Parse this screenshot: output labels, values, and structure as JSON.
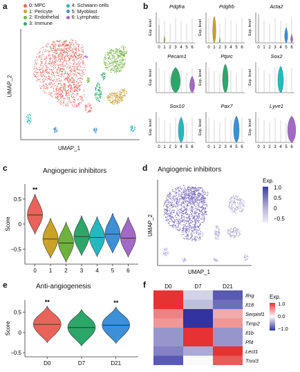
{
  "panels": {
    "a": "a",
    "b": "b",
    "c": "c",
    "d": "d",
    "e": "e",
    "f": "f"
  },
  "umap_a": {
    "legend": [
      {
        "label": "0: MPC",
        "color": "#e8645a"
      },
      {
        "label": "1: Pericyte",
        "color": "#c9a227"
      },
      {
        "label": "2: Endothelial",
        "color": "#6fb23e"
      },
      {
        "label": "3: Immune",
        "color": "#2da66a"
      },
      {
        "label": "4: Schwann cells",
        "color": "#26b8c0"
      },
      {
        "label": "5: Myoblast",
        "color": "#3d8fd6"
      },
      {
        "label": "6: Lymphatic",
        "color": "#a26ac6"
      }
    ],
    "xlabel": "UMAP_1",
    "ylabel": "UMAP_2"
  },
  "violin_b": {
    "ylabel": "Exp. level",
    "cluster_labels": [
      "0",
      "1",
      "2",
      "3",
      "4",
      "5",
      "6"
    ],
    "genes": [
      "Pdgfra",
      "Pdgfrb",
      "Acta2",
      "Pecam1",
      "Ptprc",
      "Sox2",
      "Sox10",
      "Pax7",
      "Lyve1"
    ]
  },
  "chart_data": [
    {
      "type": "violin",
      "title": "Angiogenic inhibitors",
      "xlabel": "",
      "ylabel": "Score",
      "categories": [
        "0",
        "1",
        "2",
        "3",
        "4",
        "5",
        "6"
      ],
      "medians": [
        0.18,
        -0.3,
        -0.38,
        -0.25,
        -0.27,
        -0.2,
        -0.28
      ],
      "ylim": [
        -0.8,
        0.8
      ],
      "yticks": [
        "−0.5",
        "0",
        "0.5"
      ],
      "significance": [
        {
          "category": "0",
          "label": "**"
        }
      ]
    },
    {
      "type": "violin",
      "title": "Anti-angiogenesis",
      "xlabel": "",
      "ylabel": "Score",
      "categories": [
        "D0",
        "D7",
        "D21"
      ],
      "medians": [
        0.2,
        0.12,
        0.18
      ],
      "ylim": [
        -0.6,
        0.8
      ],
      "yticks": [
        "−0.5",
        "0",
        "0.5"
      ],
      "significance": [
        {
          "category": "D0",
          "label": "**"
        },
        {
          "category": "D21",
          "label": "**"
        }
      ]
    },
    {
      "type": "heatmap",
      "columns": [
        "D0",
        "D7",
        "D21"
      ],
      "rows": [
        "Ifng",
        "Il18",
        "Serpinf1",
        "Timp2",
        "Il1b",
        "Pf4",
        "Lect1",
        "Tnni3"
      ],
      "values": [
        [
          1.0,
          -0.2,
          -0.8
        ],
        [
          1.0,
          -0.3,
          -0.7
        ],
        [
          0.6,
          -1.0,
          0.4
        ],
        [
          0.5,
          -1.0,
          0.5
        ],
        [
          -0.5,
          1.0,
          -0.5
        ],
        [
          -0.5,
          1.0,
          -0.5
        ],
        [
          -0.6,
          -0.4,
          1.0
        ],
        [
          -0.8,
          0.0,
          0.8
        ]
      ],
      "legend_title": "Exp.",
      "legend_ticks": [
        "1.0",
        "0.0",
        "−1.0"
      ]
    }
  ],
  "umap_d": {
    "title": "Angiogenic inhibitors",
    "xlabel": "UMAP_1",
    "ylabel": "UMAP_2",
    "legend_title": "Exp.",
    "legend_ticks": [
      "1.0",
      "0.5",
      "0",
      "−0.5"
    ]
  }
}
